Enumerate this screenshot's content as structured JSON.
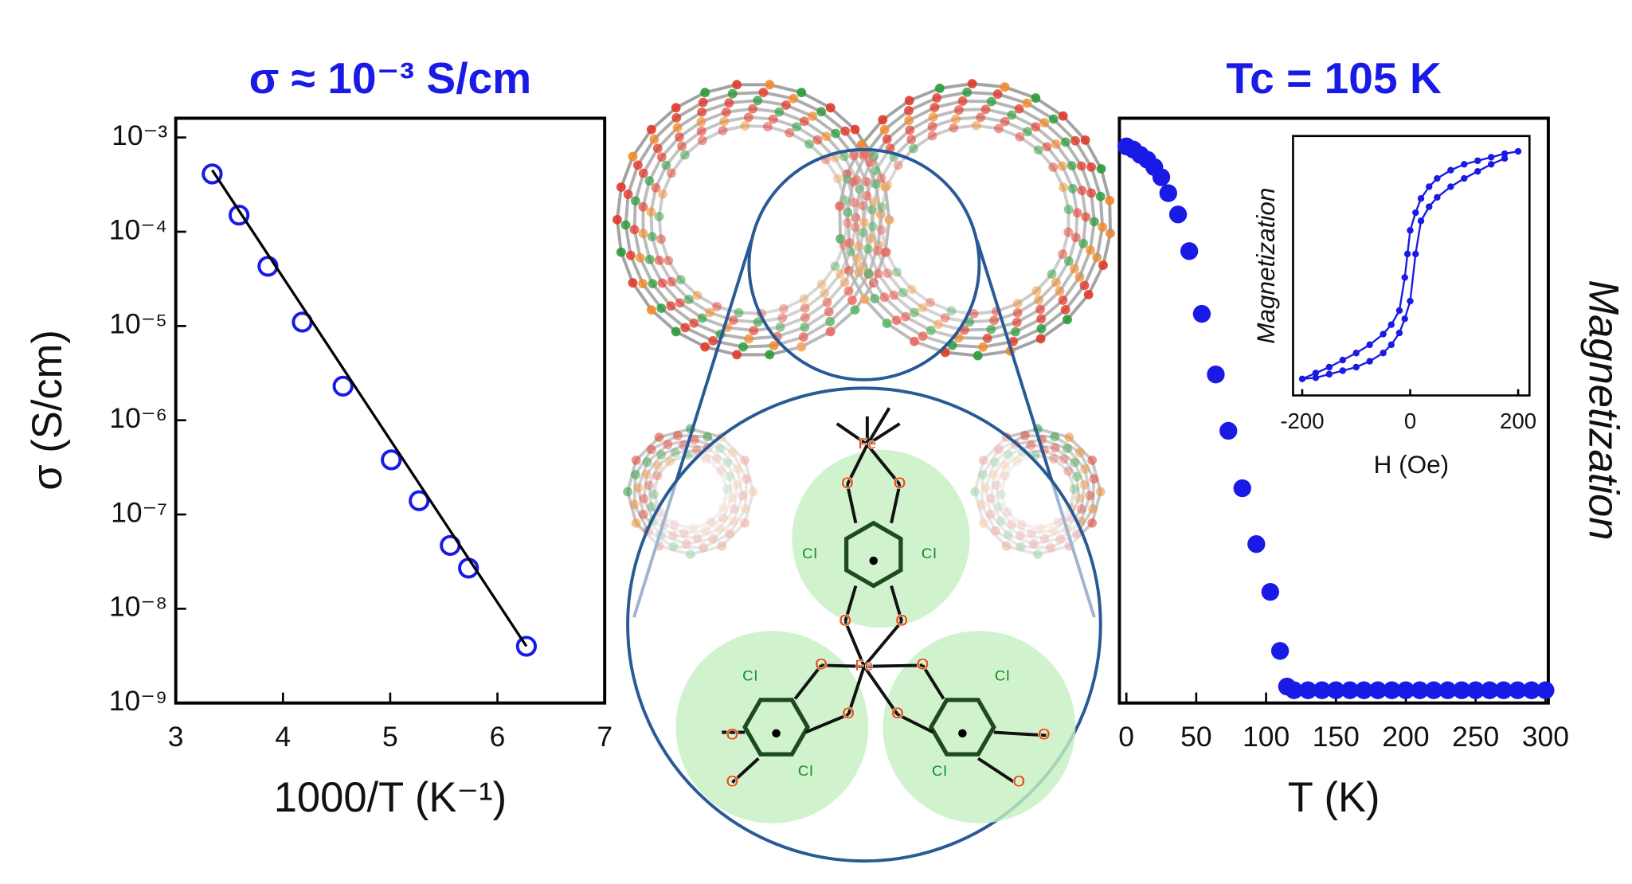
{
  "chart_data": [
    {
      "type": "scatter",
      "title": "σ ≈ 10⁻³ S/cm",
      "x_label": "1000/T (K⁻¹)",
      "y_label": "σ (S/cm)",
      "log_y": true,
      "xlim": [
        3,
        7
      ],
      "ylim": [
        1e-09,
        0.0016
      ],
      "xticks": [
        3,
        4,
        5,
        6,
        7
      ],
      "yticks": [
        {
          "value": 1e-09,
          "label": "10⁻⁹"
        },
        {
          "value": 1e-08,
          "label": "10⁻⁸"
        },
        {
          "value": 1e-07,
          "label": "10⁻⁷"
        },
        {
          "value": 1e-06,
          "label": "10⁻⁶"
        },
        {
          "value": 1e-05,
          "label": "10⁻⁵"
        },
        {
          "value": 0.0001,
          "label": "10⁻⁴"
        },
        {
          "value": 0.001,
          "label": "10⁻³"
        }
      ],
      "series": [
        {
          "mode": "markers",
          "marker": "open",
          "color": "#1a1ae6",
          "x": [
            3.34,
            3.59,
            3.86,
            4.18,
            4.56,
            5.01,
            5.27,
            5.56,
            5.73,
            6.27
          ],
          "values": [
            0.00041,
            0.00015,
            4.3e-05,
            1.1e-05,
            2.3e-06,
            3.8e-07,
            1.4e-07,
            4.7e-08,
            2.7e-08,
            4e-09
          ]
        },
        {
          "mode": "lines",
          "color": "#000000",
          "x": [
            3.34,
            6.27
          ],
          "values": [
            0.00045,
            4e-09
          ]
        }
      ]
    },
    {
      "type": "scatter",
      "title": "Tc = 105 K",
      "x_label": "T (K)",
      "y_label": "Magnetization",
      "xlim": [
        -5,
        302
      ],
      "ylim": [
        0,
        1.1
      ],
      "xticks": [
        0,
        50,
        100,
        150,
        200,
        250,
        300
      ],
      "series": [
        {
          "mode": "markers",
          "marker": "filled",
          "color": "#1a1ae6",
          "x": [
            0,
            5,
            10,
            15,
            20,
            25,
            30,
            37,
            45,
            54,
            64,
            73,
            83,
            93,
            103,
            110,
            115,
            120,
            130,
            140,
            150,
            160,
            170,
            180,
            190,
            200,
            210,
            220,
            230,
            240,
            250,
            260,
            270,
            280,
            290,
            300
          ],
          "values": [
            1.047,
            1.041,
            1.031,
            1.022,
            1.008,
            0.989,
            0.959,
            0.919,
            0.85,
            0.732,
            0.618,
            0.512,
            0.404,
            0.299,
            0.209,
            0.098,
            0.031,
            0.024,
            0.024,
            0.024,
            0.024,
            0.024,
            0.024,
            0.024,
            0.024,
            0.024,
            0.024,
            0.024,
            0.024,
            0.024,
            0.024,
            0.024,
            0.024,
            0.024,
            0.024,
            0.024
          ]
        }
      ]
    },
    {
      "type": "line",
      "x_label": "H (Oe)",
      "y_label": "Magnetization",
      "xlim": [
        -217,
        221
      ],
      "ylim": [
        -1.1,
        1.1
      ],
      "xticks": [
        -200,
        0,
        200
      ],
      "series": [
        {
          "mode": "lines+markers",
          "color": "#1a1ae6",
          "x": [
            200,
            175,
            150,
            125,
            100,
            75,
            50,
            35,
            20,
            10,
            0,
            -5,
            -10,
            -20,
            -35,
            -50,
            -75,
            -100,
            -125,
            -150,
            -175,
            -200,
            -175,
            -150,
            -125,
            -100,
            -75,
            -50,
            -35,
            -20,
            -10,
            0,
            10,
            20,
            35,
            50,
            75,
            100,
            125,
            150,
            175
          ],
          "values": [
            0.97,
            0.95,
            0.92,
            0.89,
            0.86,
            0.81,
            0.74,
            0.67,
            0.57,
            0.45,
            0.3,
            0.1,
            -0.1,
            -0.38,
            -0.5,
            -0.58,
            -0.67,
            -0.74,
            -0.8,
            -0.86,
            -0.91,
            -0.96,
            -0.95,
            -0.92,
            -0.89,
            -0.86,
            -0.81,
            -0.74,
            -0.67,
            -0.57,
            -0.45,
            -0.3,
            0.1,
            0.38,
            0.5,
            0.58,
            0.67,
            0.74,
            0.8,
            0.86,
            0.91
          ]
        }
      ]
    }
  ],
  "diagram": {
    "atom_labels": [
      "Fe",
      "Fe",
      "O",
      "O",
      "O",
      "O",
      "O",
      "O",
      "O",
      "O",
      "O",
      "O",
      "O",
      "O",
      "Cl",
      "Cl",
      "Cl",
      "Cl",
      "Cl",
      "Cl"
    ]
  }
}
